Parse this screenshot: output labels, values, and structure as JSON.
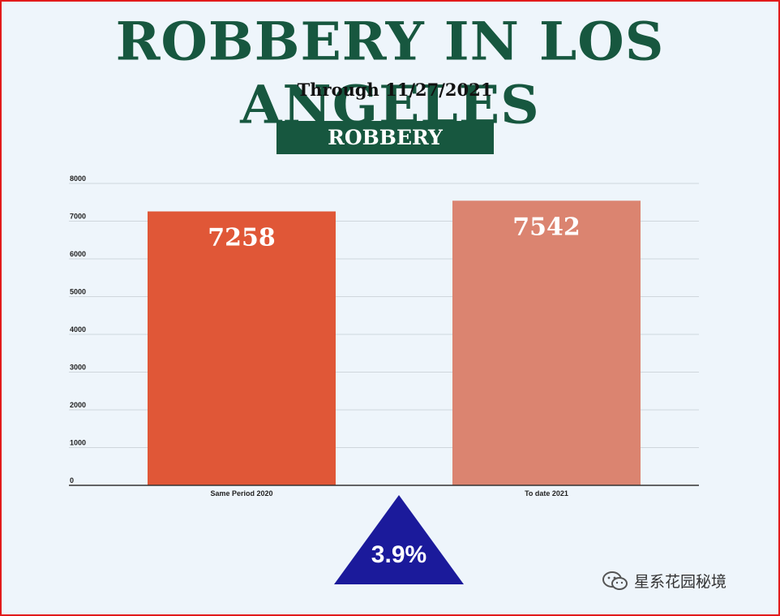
{
  "title": "ROBBERY IN LOS ANGELES",
  "subtitle": "Through 11/27/2021",
  "category_box": "ROBBERY",
  "change_label": "3.9%",
  "watermark": "星系花园秘境",
  "colors": {
    "title": "#17573f",
    "box": "#17573f",
    "bar_2020": "#e05737",
    "bar_2021": "#db8470",
    "triangle": "#1b1a9b",
    "border": "#e21b1b",
    "background": "#eef5fb"
  },
  "chart_data": {
    "type": "bar",
    "categories": [
      "Same Period 2020",
      "To date 2021"
    ],
    "values": [
      7258,
      7542
    ],
    "data_labels": [
      "7258",
      "7542"
    ],
    "ylim": [
      0,
      8000
    ],
    "yticks": [
      0,
      1000,
      2000,
      3000,
      4000,
      5000,
      6000,
      7000,
      8000
    ],
    "grid": true,
    "xlabel": "",
    "ylabel": ""
  }
}
